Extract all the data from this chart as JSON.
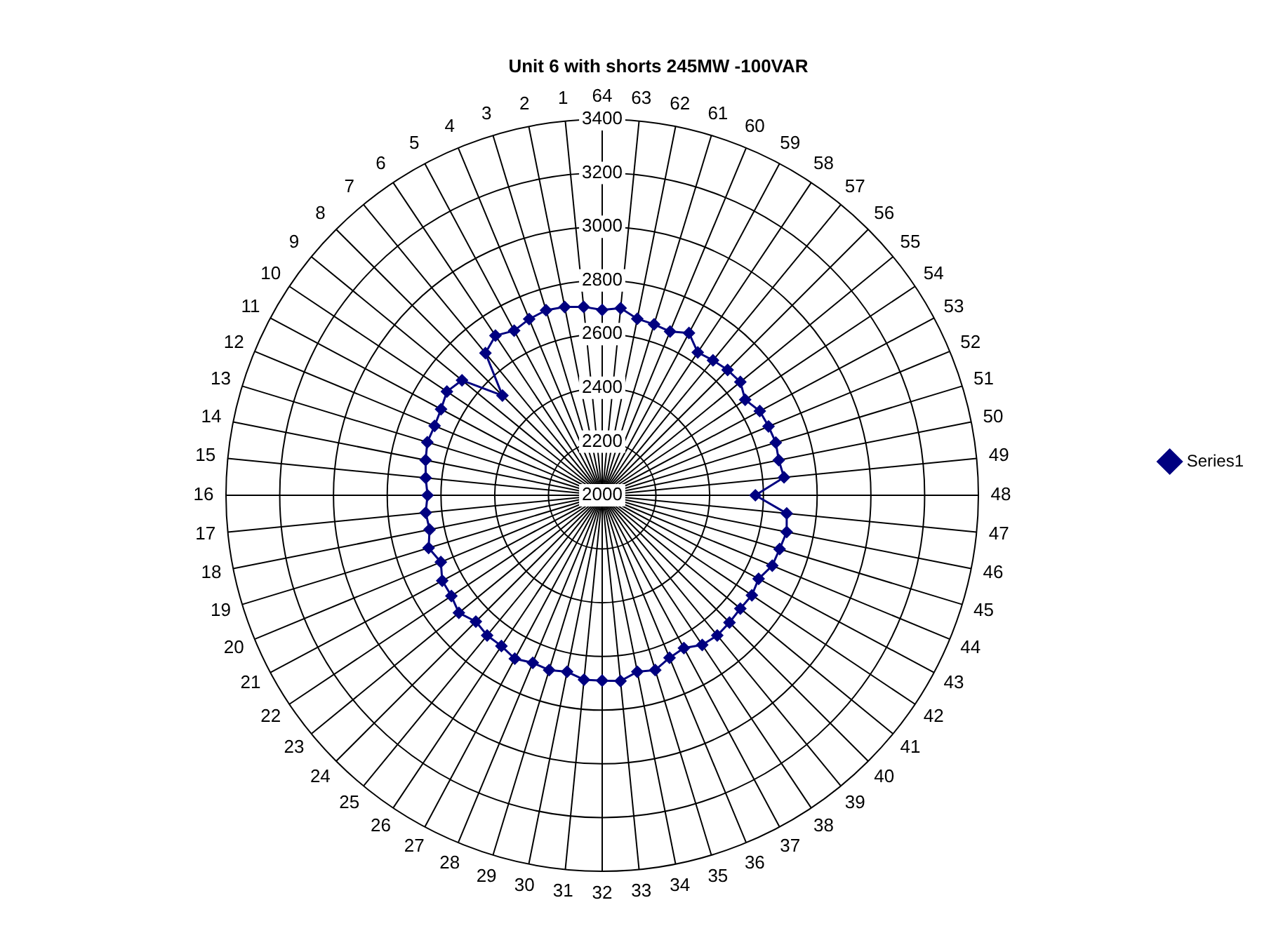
{
  "chart_data": {
    "type": "radar",
    "title": "Unit 6 with shorts 245MW -100VAR",
    "categories": [
      "64",
      "63",
      "62",
      "61",
      "60",
      "59",
      "58",
      "57",
      "56",
      "55",
      "54",
      "53",
      "52",
      "51",
      "50",
      "49",
      "48",
      "47",
      "46",
      "45",
      "44",
      "43",
      "42",
      "41",
      "40",
      "39",
      "38",
      "37",
      "36",
      "35",
      "34",
      "33",
      "32",
      "31",
      "30",
      "29",
      "28",
      "27",
      "26",
      "25",
      "24",
      "23",
      "22",
      "21",
      "20",
      "19",
      "18",
      "17",
      "16",
      "15",
      "14",
      "13",
      "12",
      "11",
      "10",
      "9",
      "8",
      "7",
      "6",
      "5",
      "4",
      "3",
      "2",
      "1"
    ],
    "series": [
      {
        "name": "Series1",
        "color": "#000080",
        "values": [
          2690,
          2700,
          2670,
          2665,
          2660,
          2685,
          2640,
          2650,
          2660,
          2665,
          2640,
          2665,
          2670,
          2675,
          2670,
          2680,
          2570,
          2690,
          2700,
          2690,
          2685,
          2660,
          2670,
          2665,
          2670,
          2675,
          2670,
          2645,
          2655,
          2680,
          2670,
          2695,
          2690,
          2690,
          2670,
          2680,
          2675,
          2690,
          2675,
          2675,
          2665,
          2690,
          2675,
          2675,
          2650,
          2675,
          2655,
          2660,
          2650,
          2660,
          2670,
          2680,
          2675,
          2680,
          2695,
          2675,
          2525,
          2685,
          2715,
          2695,
          2710,
          2720,
          2715,
          2705
        ]
      }
    ],
    "ylim": [
      2000,
      3400
    ],
    "yticks": [
      2000,
      2200,
      2400,
      2600,
      2800,
      3000,
      3200,
      3400
    ],
    "grid": true,
    "legend": "right",
    "marker": "diamond",
    "line_style": "solid"
  }
}
